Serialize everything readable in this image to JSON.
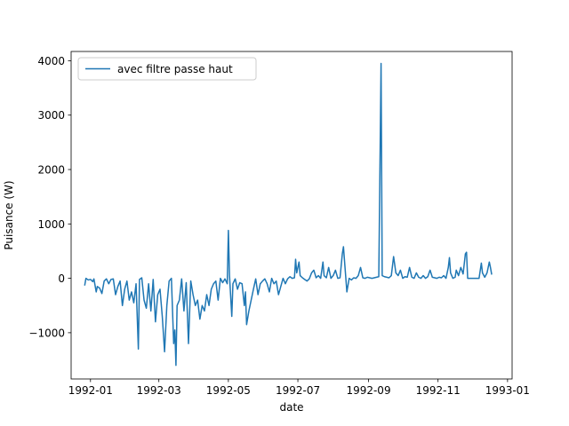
{
  "chart_data": {
    "type": "line",
    "title": "",
    "xlabel": "date",
    "ylabel": "Puisance (W)",
    "x_type": "date",
    "xlim": [
      "1991-12-15",
      "1993-01-05"
    ],
    "ylim": [
      -1850,
      4170
    ],
    "x_ticks": [
      {
        "date": "1992-01-01",
        "label": "1992-01"
      },
      {
        "date": "1992-03-01",
        "label": "1992-03"
      },
      {
        "date": "1992-05-01",
        "label": "1992-05"
      },
      {
        "date": "1992-07-01",
        "label": "1992-07"
      },
      {
        "date": "1992-09-01",
        "label": "1992-09"
      },
      {
        "date": "1992-11-01",
        "label": "1992-11"
      },
      {
        "date": "1993-01-01",
        "label": "1993-01"
      }
    ],
    "y_ticks": [
      {
        "value": -1000,
        "label": "−1000"
      },
      {
        "value": 0,
        "label": "0"
      },
      {
        "value": 1000,
        "label": "1000"
      },
      {
        "value": 2000,
        "label": "2000"
      },
      {
        "value": 3000,
        "label": "3000"
      },
      {
        "value": 4000,
        "label": "4000"
      }
    ],
    "grid": false,
    "legend_position": "top-left",
    "series": [
      {
        "name": "avec filtre passe haut",
        "color": "#1f77b4",
        "points": [
          [
            "1991-12-27",
            -120
          ],
          [
            "1991-12-28",
            0
          ],
          [
            "1991-12-30",
            -30
          ],
          [
            "1992-01-01",
            -20
          ],
          [
            "1992-01-03",
            -60
          ],
          [
            "1992-01-04",
            -10
          ],
          [
            "1992-01-06",
            -250
          ],
          [
            "1992-01-07",
            -150
          ],
          [
            "1992-01-09",
            -180
          ],
          [
            "1992-01-11",
            -280
          ],
          [
            "1992-01-13",
            -50
          ],
          [
            "1992-01-15",
            -10
          ],
          [
            "1992-01-17",
            -100
          ],
          [
            "1992-01-19",
            -20
          ],
          [
            "1992-01-21",
            -10
          ],
          [
            "1992-01-23",
            -300
          ],
          [
            "1992-01-25",
            -150
          ],
          [
            "1992-01-27",
            -50
          ],
          [
            "1992-01-29",
            -500
          ],
          [
            "1992-01-31",
            -200
          ],
          [
            "1992-02-02",
            -50
          ],
          [
            "1992-02-04",
            -400
          ],
          [
            "1992-02-06",
            -250
          ],
          [
            "1992-02-08",
            -450
          ],
          [
            "1992-02-10",
            -100
          ],
          [
            "1992-02-12",
            -1300
          ],
          [
            "1992-02-13",
            -20
          ],
          [
            "1992-02-15",
            10
          ],
          [
            "1992-02-17",
            -400
          ],
          [
            "1992-02-19",
            -550
          ],
          [
            "1992-02-21",
            -100
          ],
          [
            "1992-02-23",
            -600
          ],
          [
            "1992-02-25",
            -20
          ],
          [
            "1992-02-27",
            -800
          ],
          [
            "1992-02-29",
            -300
          ],
          [
            "1992-03-02",
            -200
          ],
          [
            "1992-03-04",
            -700
          ],
          [
            "1992-03-06",
            -1350
          ],
          [
            "1992-03-08",
            -500
          ],
          [
            "1992-03-10",
            -50
          ],
          [
            "1992-03-12",
            0
          ],
          [
            "1992-03-14",
            -1200
          ],
          [
            "1992-03-15",
            -950
          ],
          [
            "1992-03-16",
            -1600
          ],
          [
            "1992-03-17",
            -500
          ],
          [
            "1992-03-19",
            -400
          ],
          [
            "1992-03-21",
            -10
          ],
          [
            "1992-03-23",
            -600
          ],
          [
            "1992-03-25",
            -80
          ],
          [
            "1992-03-27",
            -1200
          ],
          [
            "1992-03-29",
            -50
          ],
          [
            "1992-03-31",
            -300
          ],
          [
            "1992-04-02",
            -500
          ],
          [
            "1992-04-04",
            -400
          ],
          [
            "1992-04-06",
            -750
          ],
          [
            "1992-04-08",
            -500
          ],
          [
            "1992-04-10",
            -600
          ],
          [
            "1992-04-12",
            -300
          ],
          [
            "1992-04-14",
            -500
          ],
          [
            "1992-04-16",
            -200
          ],
          [
            "1992-04-18",
            -100
          ],
          [
            "1992-04-20",
            -50
          ],
          [
            "1992-04-22",
            -400
          ],
          [
            "1992-04-24",
            0
          ],
          [
            "1992-04-26",
            -80
          ],
          [
            "1992-04-28",
            -10
          ],
          [
            "1992-04-30",
            -100
          ],
          [
            "1992-05-01",
            880
          ],
          [
            "1992-05-02",
            50
          ],
          [
            "1992-05-04",
            -700
          ],
          [
            "1992-05-05",
            -100
          ],
          [
            "1992-05-07",
            -10
          ],
          [
            "1992-05-09",
            -200
          ],
          [
            "1992-05-11",
            -80
          ],
          [
            "1992-05-13",
            -100
          ],
          [
            "1992-05-15",
            -500
          ],
          [
            "1992-05-16",
            -250
          ],
          [
            "1992-05-17",
            -850
          ],
          [
            "1992-05-19",
            -600
          ],
          [
            "1992-05-21",
            -400
          ],
          [
            "1992-05-23",
            -200
          ],
          [
            "1992-05-25",
            -10
          ],
          [
            "1992-05-27",
            -300
          ],
          [
            "1992-05-29",
            -100
          ],
          [
            "1992-05-31",
            -50
          ],
          [
            "1992-06-02",
            -10
          ],
          [
            "1992-06-04",
            -100
          ],
          [
            "1992-06-06",
            -250
          ],
          [
            "1992-06-08",
            0
          ],
          [
            "1992-06-10",
            -100
          ],
          [
            "1992-06-12",
            -50
          ],
          [
            "1992-06-14",
            -300
          ],
          [
            "1992-06-16",
            -150
          ],
          [
            "1992-06-18",
            0
          ],
          [
            "1992-06-20",
            -100
          ],
          [
            "1992-06-22",
            -10
          ],
          [
            "1992-06-24",
            30
          ],
          [
            "1992-06-26",
            0
          ],
          [
            "1992-06-28",
            10
          ],
          [
            "1992-06-29",
            350
          ],
          [
            "1992-06-30",
            100
          ],
          [
            "1992-07-02",
            300
          ],
          [
            "1992-07-03",
            50
          ],
          [
            "1992-07-05",
            10
          ],
          [
            "1992-07-07",
            -20
          ],
          [
            "1992-07-09",
            -50
          ],
          [
            "1992-07-11",
            -10
          ],
          [
            "1992-07-13",
            100
          ],
          [
            "1992-07-15",
            150
          ],
          [
            "1992-07-17",
            10
          ],
          [
            "1992-07-19",
            50
          ],
          [
            "1992-07-21",
            0
          ],
          [
            "1992-07-23",
            300
          ],
          [
            "1992-07-24",
            50
          ],
          [
            "1992-07-26",
            10
          ],
          [
            "1992-07-28",
            200
          ],
          [
            "1992-07-30",
            0
          ],
          [
            "1992-08-01",
            50
          ],
          [
            "1992-08-03",
            150
          ],
          [
            "1992-08-05",
            0
          ],
          [
            "1992-08-07",
            10
          ],
          [
            "1992-08-09",
            450
          ],
          [
            "1992-08-10",
            580
          ],
          [
            "1992-08-11",
            300
          ],
          [
            "1992-08-13",
            -250
          ],
          [
            "1992-08-15",
            0
          ],
          [
            "1992-08-17",
            -30
          ],
          [
            "1992-08-19",
            10
          ],
          [
            "1992-08-21",
            0
          ],
          [
            "1992-08-23",
            50
          ],
          [
            "1992-08-25",
            200
          ],
          [
            "1992-08-27",
            10
          ],
          [
            "1992-08-29",
            0
          ],
          [
            "1992-08-31",
            20
          ],
          [
            "1992-09-02",
            10
          ],
          [
            "1992-09-04",
            0
          ],
          [
            "1992-09-06",
            10
          ],
          [
            "1992-09-08",
            20
          ],
          [
            "1992-09-10",
            30
          ],
          [
            "1992-09-12",
            3950
          ],
          [
            "1992-09-13",
            50
          ],
          [
            "1992-09-15",
            30
          ],
          [
            "1992-09-17",
            20
          ],
          [
            "1992-09-19",
            10
          ],
          [
            "1992-09-21",
            50
          ],
          [
            "1992-09-23",
            400
          ],
          [
            "1992-09-25",
            100
          ],
          [
            "1992-09-27",
            50
          ],
          [
            "1992-09-29",
            150
          ],
          [
            "1992-10-01",
            0
          ],
          [
            "1992-10-03",
            30
          ],
          [
            "1992-10-05",
            20
          ],
          [
            "1992-10-07",
            200
          ],
          [
            "1992-10-09",
            20
          ],
          [
            "1992-10-11",
            0
          ],
          [
            "1992-10-13",
            100
          ],
          [
            "1992-10-15",
            20
          ],
          [
            "1992-10-17",
            0
          ],
          [
            "1992-10-19",
            50
          ],
          [
            "1992-10-21",
            0
          ],
          [
            "1992-10-23",
            30
          ],
          [
            "1992-10-25",
            150
          ],
          [
            "1992-10-27",
            20
          ],
          [
            "1992-10-29",
            10
          ],
          [
            "1992-10-31",
            0
          ],
          [
            "1992-11-02",
            20
          ],
          [
            "1992-11-04",
            10
          ],
          [
            "1992-11-06",
            50
          ],
          [
            "1992-11-08",
            0
          ],
          [
            "1992-11-10",
            200
          ],
          [
            "1992-11-11",
            380
          ],
          [
            "1992-11-12",
            100
          ],
          [
            "1992-11-14",
            0
          ],
          [
            "1992-11-16",
            20
          ],
          [
            "1992-11-17",
            150
          ],
          [
            "1992-11-19",
            50
          ],
          [
            "1992-11-21",
            200
          ],
          [
            "1992-11-23",
            80
          ],
          [
            "1992-11-25",
            450
          ],
          [
            "1992-11-26",
            480
          ],
          [
            "1992-11-27",
            0
          ],
          [
            "1992-11-29",
            0
          ],
          [
            "1992-12-01",
            0
          ],
          [
            "1992-12-03",
            0
          ],
          [
            "1992-12-05",
            0
          ],
          [
            "1992-12-07",
            0
          ],
          [
            "1992-12-09",
            280
          ],
          [
            "1992-12-10",
            100
          ],
          [
            "1992-12-12",
            20
          ],
          [
            "1992-12-14",
            100
          ],
          [
            "1992-12-16",
            300
          ],
          [
            "1992-12-17",
            200
          ],
          [
            "1992-12-18",
            80
          ]
        ]
      }
    ]
  }
}
